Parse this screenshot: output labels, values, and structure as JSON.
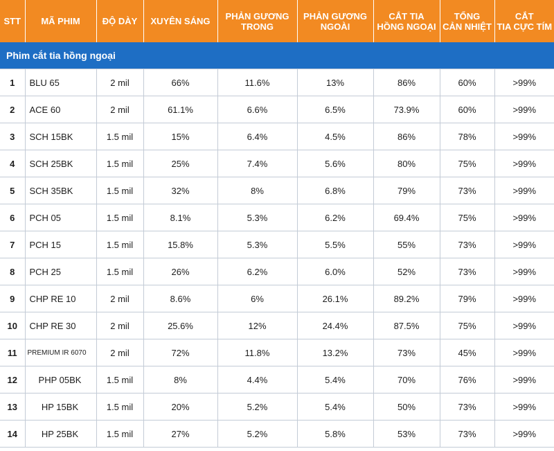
{
  "table": {
    "headers": [
      [
        "STT"
      ],
      [
        "MÃ PHIM"
      ],
      [
        "ĐỘ DÀY"
      ],
      [
        "XUYÊN SÁNG"
      ],
      [
        "PHẢN GƯƠNG",
        "TRONG"
      ],
      [
        "PHẢN GƯƠNG",
        "NGOÀI"
      ],
      [
        "CẮT TIA",
        "HỒNG NGOẠI"
      ],
      [
        "TỔNG",
        "CẢN NHIỆT"
      ],
      [
        "CẮT",
        "TIA CỰC TÍM"
      ]
    ],
    "section_title": "Phim cắt tia hồng ngoại",
    "rows": [
      [
        "1",
        "BLU 65",
        "2 mil",
        "66%",
        "11.6%",
        "13%",
        "86%",
        "60%",
        ">99%"
      ],
      [
        "2",
        "ACE 60",
        "2 mil",
        "61.1%",
        "6.6%",
        "6.5%",
        "73.9%",
        "60%",
        ">99%"
      ],
      [
        "3",
        "SCH 15BK",
        "1.5 mil",
        "15%",
        "6.4%",
        "4.5%",
        "86%",
        "78%",
        ">99%"
      ],
      [
        "4",
        "SCH 25BK",
        "1.5 mil",
        "25%",
        "7.4%",
        "5.6%",
        "80%",
        "75%",
        ">99%"
      ],
      [
        "5",
        "SCH 35BK",
        "1.5 mil",
        "32%",
        "8%",
        "6.8%",
        "79%",
        "73%",
        ">99%"
      ],
      [
        "6",
        "PCH 05",
        "1.5 mil",
        "8.1%",
        "5.3%",
        "6.2%",
        "69.4%",
        "75%",
        ">99%"
      ],
      [
        "7",
        "PCH 15",
        "1.5 mil",
        "15.8%",
        "5.3%",
        "5.5%",
        "55%",
        "73%",
        ">99%"
      ],
      [
        "8",
        "PCH 25",
        "1.5 mil",
        "26%",
        "6.2%",
        "6.0%",
        "52%",
        "73%",
        ">99%"
      ],
      [
        "9",
        "CHP RE 10",
        "2 mil",
        "8.6%",
        "6%",
        "26.1%",
        "89.2%",
        "79%",
        ">99%"
      ],
      [
        "10",
        "CHP RE 30",
        "2 mil",
        "25.6%",
        "12%",
        "24.4%",
        "87.5%",
        "75%",
        ">99%"
      ],
      [
        "11",
        "PREMIUM IR 6070",
        "2 mil",
        "72%",
        "11.8%",
        "13.2%",
        "73%",
        "45%",
        ">99%"
      ],
      [
        "12",
        "PHP 05BK",
        "1.5 mil",
        "8%",
        "4.4%",
        "5.4%",
        "70%",
        "76%",
        ">99%"
      ],
      [
        "13",
        "HP 15BK",
        "1.5 mil",
        "20%",
        "5.2%",
        "5.4%",
        "50%",
        "73%",
        ">99%"
      ],
      [
        "14",
        "HP 25BK",
        "1.5 mil",
        "27%",
        "5.2%",
        "5.8%",
        "53%",
        "73%",
        ">99%"
      ]
    ]
  },
  "colors": {
    "header_bg": "#f28a22",
    "section_bg": "#1e6ec4",
    "grid": "#c3cbd6"
  }
}
